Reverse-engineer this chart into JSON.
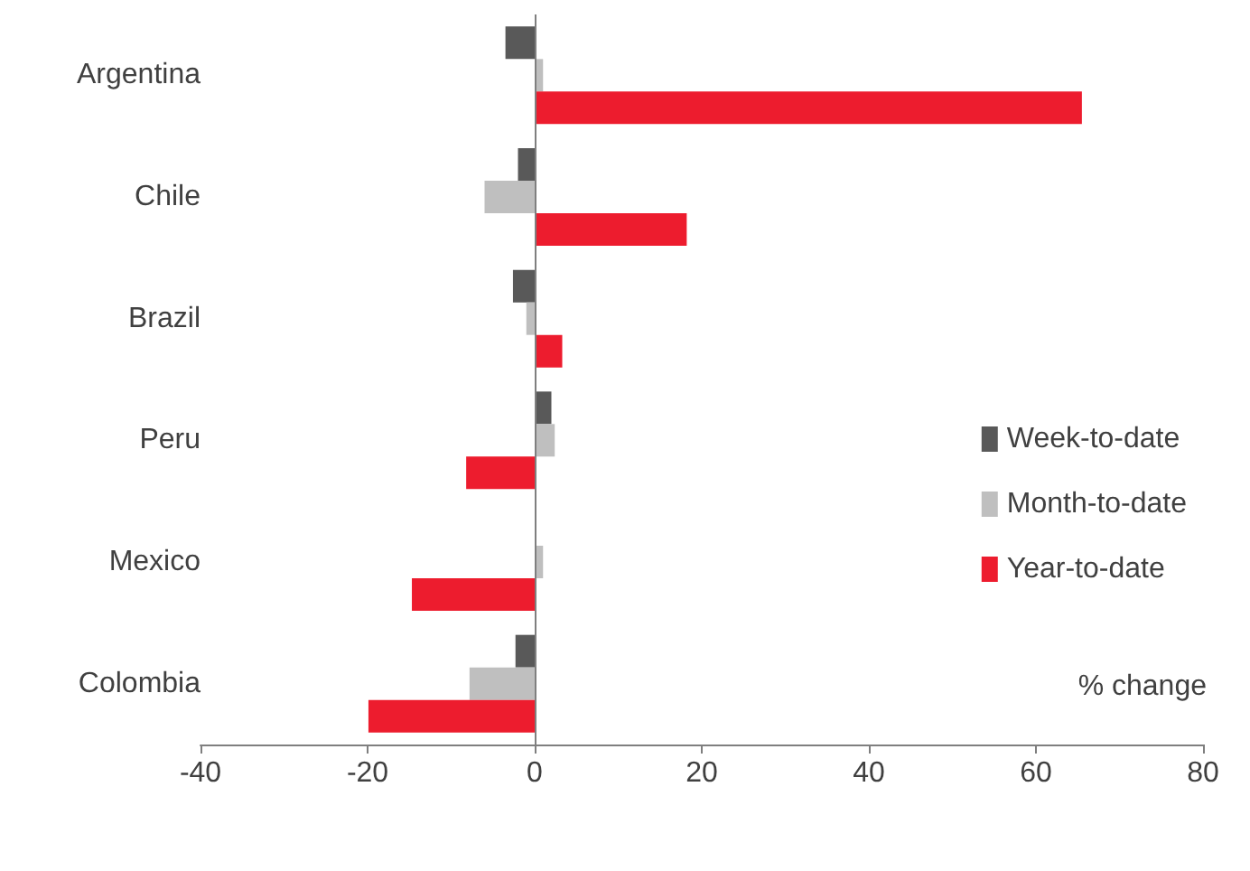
{
  "chart_data": {
    "type": "bar",
    "orientation": "horizontal",
    "categories": [
      "Argentina",
      "Chile",
      "Brazil",
      "Peru",
      "Mexico",
      "Colombia"
    ],
    "series": [
      {
        "name": "Week-to-date",
        "color": "#595959",
        "values": [
          -3.5,
          -2,
          -2.6,
          2,
          0.2,
          -2.3
        ]
      },
      {
        "name": "Month-to-date",
        "color": "#bfbfbf",
        "values": [
          1,
          -6,
          -1,
          2.4,
          1,
          -7.8
        ]
      },
      {
        "name": "Year-to-date",
        "color": "#ed1c2e",
        "values": [
          65.5,
          18.2,
          3.3,
          -8.2,
          -14.7,
          -19.9
        ]
      }
    ],
    "xlim": [
      -40,
      80
    ],
    "xticks": [
      -40,
      -20,
      0,
      20,
      40,
      60,
      80
    ],
    "grid": false,
    "legend": "right",
    "ref_lines": [
      {
        "axis": "x",
        "value": 0,
        "color": "#7f7f7f"
      }
    ],
    "annotations": [
      "% change"
    ]
  }
}
